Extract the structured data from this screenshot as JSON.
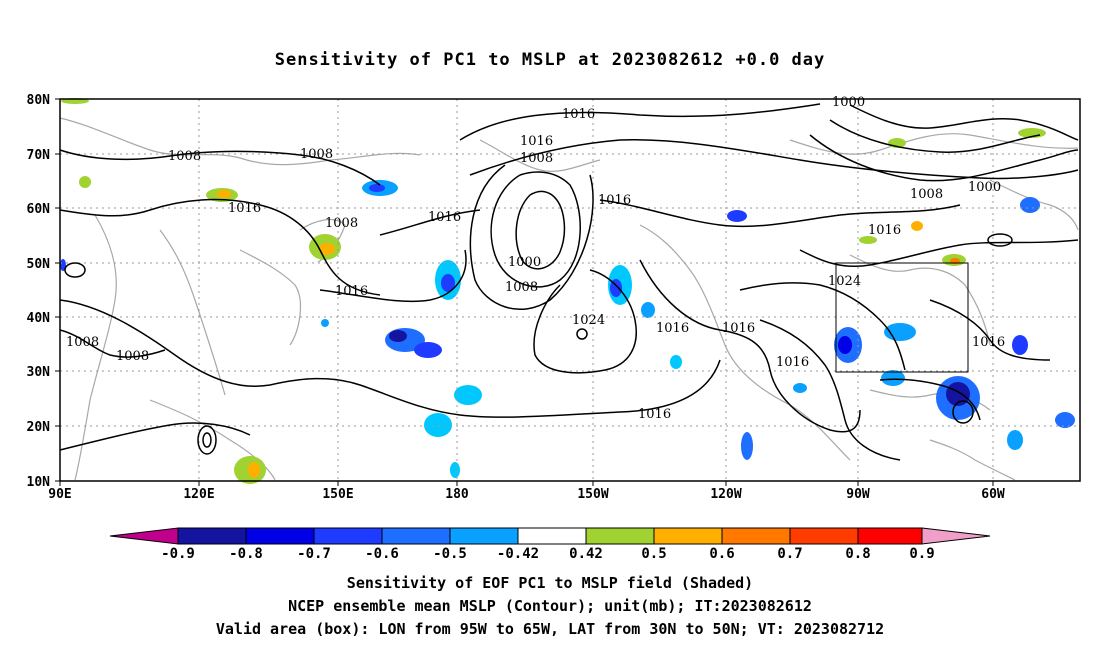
{
  "title": "Sensitivity of PC1 to MSLP at 2023082612 +0.0 day",
  "captions": {
    "line1": "Sensitivity of EOF PC1 to MSLP field (Shaded)",
    "line2": "NCEP ensemble mean MSLP (Contour); unit(mb); IT:2023082612",
    "line3": "Valid area (box): LON from 95W to 65W, LAT from 30N to 50N; VT: 2023082712"
  },
  "map": {
    "lat_ticks": [
      "80N",
      "70N",
      "60N",
      "50N",
      "40N",
      "30N",
      "20N",
      "10N"
    ],
    "lon_ticks": [
      "90E",
      "120E",
      "150E",
      "180",
      "150W",
      "120W",
      "90W",
      "60W"
    ],
    "lat_range": [
      10,
      80
    ],
    "lon_range": [
      90,
      310
    ],
    "valid_box": {
      "lon_from": "95W",
      "lon_to": "65W",
      "lat_from": "30N",
      "lat_to": "50N"
    },
    "contour_labels": [
      "1016",
      "1008",
      "1008",
      "1016",
      "1016",
      "1008",
      "1000",
      "1008",
      "1016",
      "1016",
      "1008",
      "1024",
      "1016",
      "1016",
      "1016",
      "1016",
      "1000",
      "1008",
      "1000",
      "1016",
      "1024",
      "1016",
      "1016",
      "1008",
      "1008",
      "1016"
    ]
  },
  "colorbar": {
    "ticks": [
      "-0.9",
      "-0.8",
      "-0.7",
      "-0.6",
      "-0.5",
      "-0.42",
      "0.42",
      "0.5",
      "0.6",
      "0.7",
      "0.8",
      "0.9"
    ],
    "colors": [
      "#c0008c",
      "#1414a0",
      "#0000e6",
      "#1e3cff",
      "#1e6eff",
      "#0aa0ff",
      "#00c8ff",
      "#ffffff",
      "#a0d232",
      "#ffaf00",
      "#ff7800",
      "#ff3c00",
      "#ff0000",
      "#f0a0c8"
    ]
  }
}
